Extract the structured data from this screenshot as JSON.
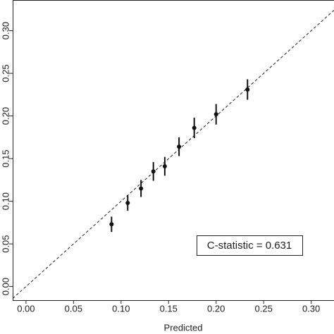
{
  "chart_data": {
    "type": "scatter",
    "x_label": "Predicted",
    "annotation": "C-statistic = 0.631",
    "color": "#111111",
    "x": [
      0.09,
      0.107,
      0.121,
      0.134,
      0.146,
      0.161,
      0.177,
      0.2,
      0.233
    ],
    "values": [
      0.073,
      0.098,
      0.115,
      0.135,
      0.141,
      0.164,
      0.186,
      0.202,
      0.231
    ],
    "errors": [
      0.009,
      0.009,
      0.01,
      0.011,
      0.011,
      0.011,
      0.012,
      0.012,
      0.012
    ],
    "xlim": [
      -0.014,
      0.324
    ],
    "ylim": [
      -0.016,
      0.336
    ],
    "xticks": [
      {
        "value": 0,
        "label": "0.00"
      },
      {
        "value": 0.05,
        "label": "0.05"
      },
      {
        "value": 0.1,
        "label": "0.10"
      },
      {
        "value": 0.15,
        "label": "0.15"
      },
      {
        "value": 0.2,
        "label": "0.20"
      },
      {
        "value": 0.25,
        "label": "0.25"
      },
      {
        "value": 0.3,
        "label": "0.30"
      }
    ],
    "yticks": [
      {
        "value": 0,
        "label": "0.00"
      },
      {
        "value": 0.05,
        "label": "0.05"
      },
      {
        "value": 0.1,
        "label": "0.10"
      },
      {
        "value": 0.15,
        "label": "0.15"
      },
      {
        "value": 0.2,
        "label": "0.20"
      },
      {
        "value": 0.25,
        "label": "0.25"
      },
      {
        "value": 0.3,
        "label": "0.30"
      }
    ]
  }
}
